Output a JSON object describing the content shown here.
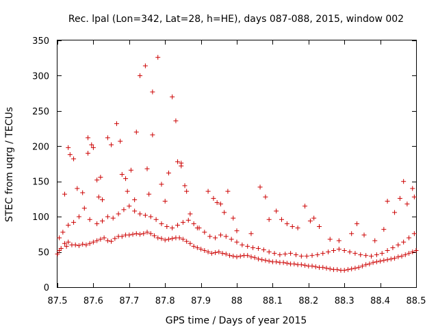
{
  "chart_data": {
    "type": "scatter",
    "title": "Rec. lpal (Lon=342, Lat=28, h=HE), days 087-088, 2015, window 002",
    "xlabel": "GPS time / Days of year 2015",
    "ylabel": "STEC from uqrg / TECUs",
    "xlim": [
      87.5,
      88.5
    ],
    "ylim": [
      0,
      350
    ],
    "xticks": [
      "87.5",
      "87.6",
      "87.7",
      "87.8",
      "87.9",
      "88",
      "88.1",
      "88.2",
      "88.3",
      "88.4",
      "88.5"
    ],
    "yticks": [
      "0",
      "50",
      "100",
      "150",
      "200",
      "250",
      "300",
      "350"
    ],
    "marker": "+",
    "color": "#cc0000",
    "grid": false,
    "series": [
      {
        "points": [
          [
            87.5,
            47
          ],
          [
            87.505,
            52
          ],
          [
            87.51,
            55
          ],
          [
            87.52,
            62
          ],
          [
            87.525,
            58
          ],
          [
            87.53,
            64
          ],
          [
            87.54,
            60
          ],
          [
            87.55,
            60
          ],
          [
            87.56,
            59
          ],
          [
            87.57,
            61
          ],
          [
            87.58,
            60
          ],
          [
            87.59,
            62
          ],
          [
            87.6,
            64
          ],
          [
            87.61,
            66
          ],
          [
            87.62,
            68
          ],
          [
            87.63,
            70
          ],
          [
            87.64,
            66
          ],
          [
            87.65,
            65
          ],
          [
            87.66,
            69
          ],
          [
            87.67,
            72
          ],
          [
            87.68,
            72
          ],
          [
            87.69,
            74
          ],
          [
            87.7,
            74
          ],
          [
            87.71,
            75
          ],
          [
            87.72,
            76
          ],
          [
            87.73,
            75
          ],
          [
            87.74,
            76
          ],
          [
            87.75,
            78
          ],
          [
            87.76,
            76
          ],
          [
            87.77,
            73
          ],
          [
            87.78,
            70
          ],
          [
            87.79,
            69
          ],
          [
            87.8,
            67
          ],
          [
            87.81,
            68
          ],
          [
            87.82,
            69
          ],
          [
            87.83,
            70
          ],
          [
            87.84,
            70
          ],
          [
            87.85,
            68
          ],
          [
            87.86,
            65
          ],
          [
            87.87,
            62
          ],
          [
            87.88,
            58
          ],
          [
            87.89,
            56
          ],
          [
            87.9,
            54
          ],
          [
            87.91,
            52
          ],
          [
            87.92,
            50
          ],
          [
            87.93,
            48
          ],
          [
            87.94,
            49
          ],
          [
            87.95,
            50
          ],
          [
            87.96,
            48
          ],
          [
            87.97,
            47
          ],
          [
            87.98,
            45
          ],
          [
            87.99,
            44
          ],
          [
            88.0,
            43
          ],
          [
            88.01,
            44
          ],
          [
            88.02,
            45
          ],
          [
            88.03,
            45
          ],
          [
            88.04,
            43
          ],
          [
            88.05,
            42
          ],
          [
            88.06,
            40
          ],
          [
            88.07,
            39
          ],
          [
            88.08,
            38
          ],
          [
            88.09,
            37
          ],
          [
            88.1,
            36
          ],
          [
            88.11,
            36
          ],
          [
            88.12,
            35
          ],
          [
            88.13,
            35
          ],
          [
            88.14,
            34
          ],
          [
            88.15,
            33
          ],
          [
            88.16,
            33
          ],
          [
            88.17,
            32
          ],
          [
            88.18,
            32
          ],
          [
            88.19,
            31
          ],
          [
            88.2,
            30
          ],
          [
            88.21,
            30
          ],
          [
            88.22,
            29
          ],
          [
            88.23,
            28
          ],
          [
            88.24,
            28
          ],
          [
            88.25,
            27
          ],
          [
            88.26,
            26
          ],
          [
            88.27,
            25
          ],
          [
            88.28,
            25
          ],
          [
            88.29,
            24
          ],
          [
            88.3,
            24
          ],
          [
            88.31,
            25
          ],
          [
            88.32,
            26
          ],
          [
            88.33,
            27
          ],
          [
            88.34,
            28
          ],
          [
            88.35,
            30
          ],
          [
            88.36,
            32
          ],
          [
            88.37,
            33
          ],
          [
            88.38,
            35
          ],
          [
            88.39,
            36
          ],
          [
            88.4,
            37
          ],
          [
            88.41,
            38
          ],
          [
            88.42,
            39
          ],
          [
            88.43,
            40
          ],
          [
            88.44,
            41
          ],
          [
            88.45,
            43
          ],
          [
            88.46,
            44
          ],
          [
            88.47,
            46
          ],
          [
            88.48,
            48
          ],
          [
            88.49,
            50
          ],
          [
            88.5,
            52
          ],
          [
            87.505,
            70
          ],
          [
            87.515,
            78
          ],
          [
            87.53,
            88
          ],
          [
            87.545,
            92
          ],
          [
            87.56,
            100
          ],
          [
            87.575,
            112
          ],
          [
            87.59,
            96
          ],
          [
            87.61,
            90
          ],
          [
            87.625,
            94
          ],
          [
            87.64,
            100
          ],
          [
            87.655,
            98
          ],
          [
            87.67,
            104
          ],
          [
            87.685,
            110
          ],
          [
            87.7,
            115
          ],
          [
            87.715,
            108
          ],
          [
            87.73,
            104
          ],
          [
            87.745,
            102
          ],
          [
            87.76,
            100
          ],
          [
            87.775,
            96
          ],
          [
            87.79,
            90
          ],
          [
            87.805,
            86
          ],
          [
            87.82,
            84
          ],
          [
            87.835,
            88
          ],
          [
            87.85,
            92
          ],
          [
            87.865,
            95
          ],
          [
            87.88,
            90
          ],
          [
            87.895,
            84
          ],
          [
            87.91,
            78
          ],
          [
            87.925,
            72
          ],
          [
            87.94,
            70
          ],
          [
            87.955,
            74
          ],
          [
            87.97,
            72
          ],
          [
            87.985,
            68
          ],
          [
            88.0,
            64
          ],
          [
            88.015,
            60
          ],
          [
            88.03,
            58
          ],
          [
            88.045,
            56
          ],
          [
            88.06,
            55
          ],
          [
            88.075,
            53
          ],
          [
            88.09,
            50
          ],
          [
            88.105,
            48
          ],
          [
            88.12,
            46
          ],
          [
            88.135,
            47
          ],
          [
            88.15,
            48
          ],
          [
            88.165,
            46
          ],
          [
            88.18,
            44
          ],
          [
            88.195,
            44
          ],
          [
            88.21,
            45
          ],
          [
            88.225,
            46
          ],
          [
            88.24,
            48
          ],
          [
            88.255,
            50
          ],
          [
            88.27,
            52
          ],
          [
            88.285,
            54
          ],
          [
            88.3,
            52
          ],
          [
            88.315,
            50
          ],
          [
            88.33,
            48
          ],
          [
            88.345,
            46
          ],
          [
            88.36,
            45
          ],
          [
            88.375,
            44
          ],
          [
            88.39,
            46
          ],
          [
            88.405,
            48
          ],
          [
            88.42,
            52
          ],
          [
            88.435,
            56
          ],
          [
            88.45,
            60
          ],
          [
            88.465,
            64
          ],
          [
            88.48,
            70
          ],
          [
            88.495,
            76
          ],
          [
            87.52,
            132
          ],
          [
            87.53,
            198
          ],
          [
            87.535,
            188
          ],
          [
            87.545,
            182
          ],
          [
            87.555,
            140
          ],
          [
            87.57,
            134
          ],
          [
            87.585,
            190
          ],
          [
            87.585,
            212
          ],
          [
            87.595,
            202
          ],
          [
            87.6,
            198
          ],
          [
            87.61,
            152
          ],
          [
            87.62,
            156
          ],
          [
            87.615,
            128
          ],
          [
            87.625,
            124
          ],
          [
            87.64,
            212
          ],
          [
            87.65,
            202
          ],
          [
            87.665,
            232
          ],
          [
            87.675,
            207
          ],
          [
            87.68,
            160
          ],
          [
            87.69,
            154
          ],
          [
            87.695,
            136
          ],
          [
            87.705,
            166
          ],
          [
            87.715,
            124
          ],
          [
            87.72,
            220
          ],
          [
            87.73,
            300
          ],
          [
            87.745,
            314
          ],
          [
            87.75,
            168
          ],
          [
            87.755,
            132
          ],
          [
            87.765,
            277
          ],
          [
            87.765,
            216
          ],
          [
            87.78,
            326
          ],
          [
            87.79,
            146
          ],
          [
            87.8,
            122
          ],
          [
            87.81,
            162
          ],
          [
            87.82,
            270
          ],
          [
            87.83,
            236
          ],
          [
            87.835,
            178
          ],
          [
            87.845,
            172
          ],
          [
            87.845,
            176
          ],
          [
            87.855,
            144
          ],
          [
            87.86,
            136
          ],
          [
            87.87,
            104
          ],
          [
            87.89,
            84
          ],
          [
            87.92,
            136
          ],
          [
            87.935,
            126
          ],
          [
            87.945,
            120
          ],
          [
            87.955,
            118
          ],
          [
            87.965,
            106
          ],
          [
            87.975,
            136
          ],
          [
            87.99,
            98
          ],
          [
            88.0,
            80
          ],
          [
            88.04,
            76
          ],
          [
            88.065,
            142
          ],
          [
            88.08,
            128
          ],
          [
            88.09,
            96
          ],
          [
            88.11,
            108
          ],
          [
            88.125,
            96
          ],
          [
            88.14,
            90
          ],
          [
            88.155,
            86
          ],
          [
            88.17,
            84
          ],
          [
            88.19,
            115
          ],
          [
            88.205,
            94
          ],
          [
            88.215,
            98
          ],
          [
            88.23,
            86
          ],
          [
            88.26,
            68
          ],
          [
            88.285,
            66
          ],
          [
            88.32,
            76
          ],
          [
            88.335,
            90
          ],
          [
            88.355,
            74
          ],
          [
            88.385,
            66
          ],
          [
            88.41,
            82
          ],
          [
            88.42,
            122
          ],
          [
            88.44,
            106
          ],
          [
            88.455,
            126
          ],
          [
            88.465,
            150
          ],
          [
            88.475,
            118
          ],
          [
            88.49,
            140
          ],
          [
            88.495,
            128
          ]
        ]
      }
    ]
  }
}
